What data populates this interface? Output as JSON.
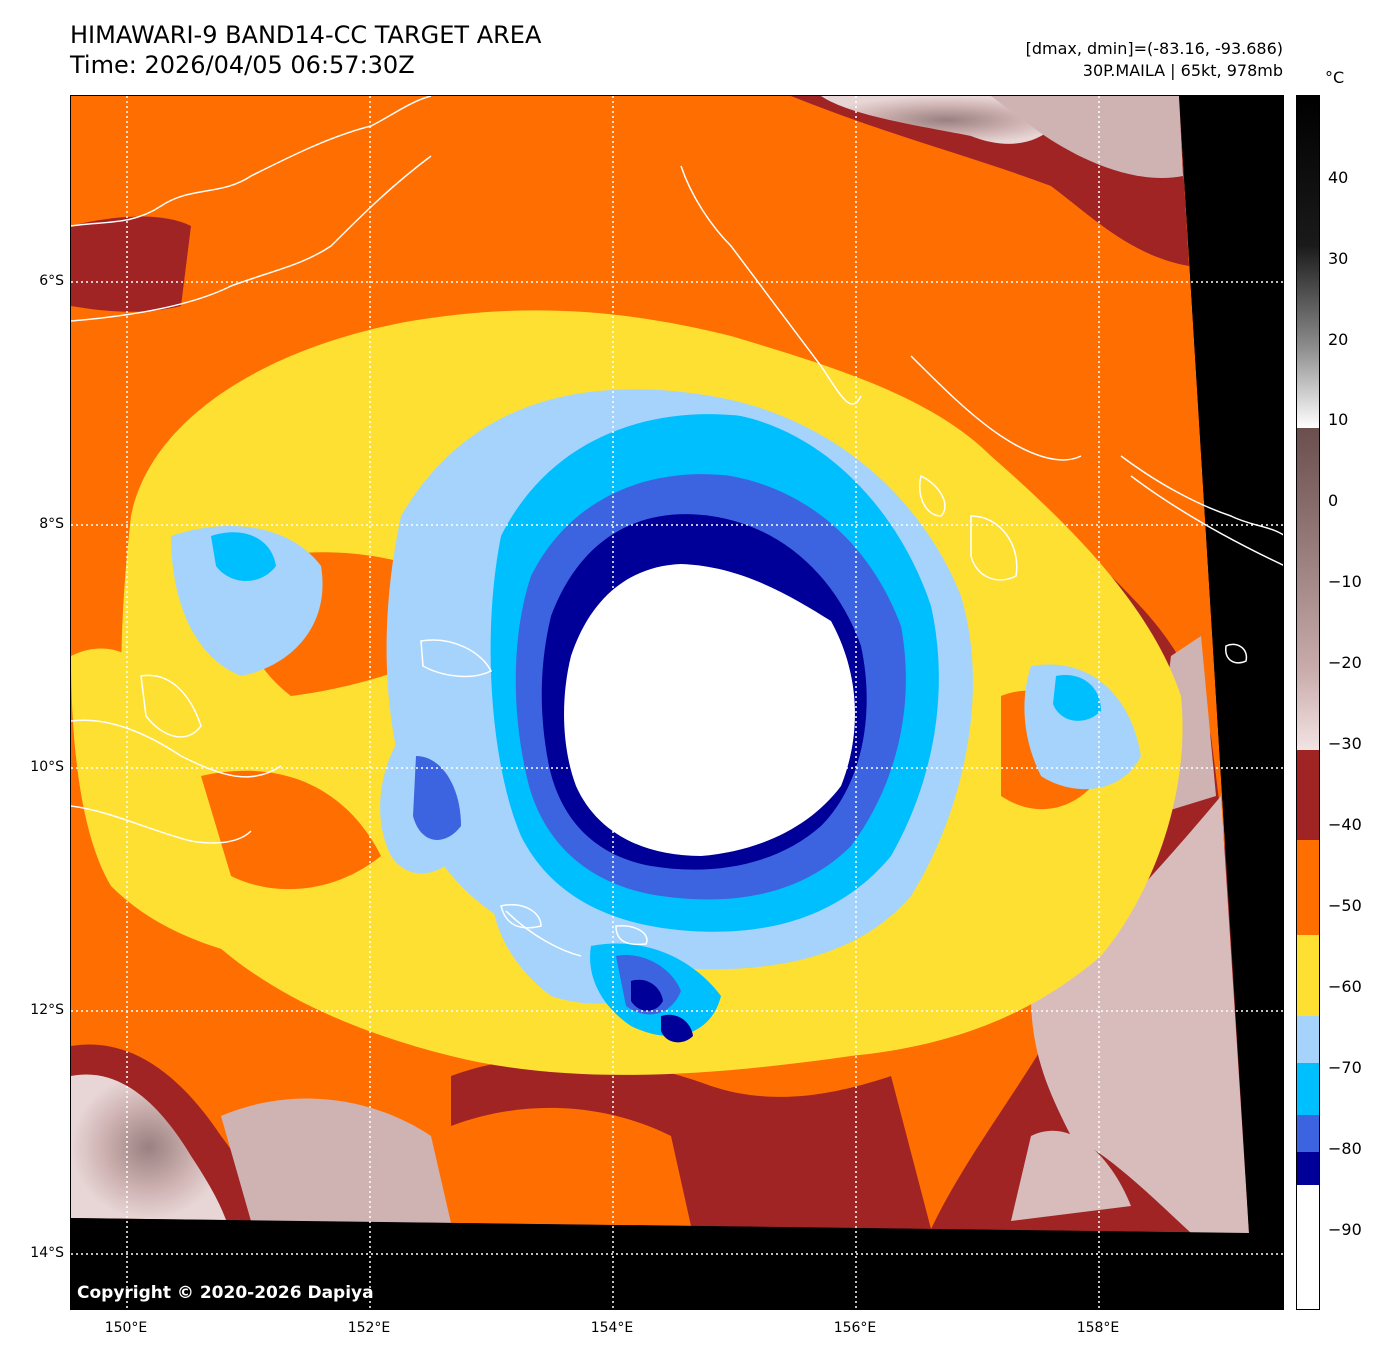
{
  "header": {
    "title_line1": "HIMAWARI-9 BAND14-CC TARGET AREA",
    "title_line2": "Time: 2026/04/05 06:57:30Z",
    "stats_line": "[dmax, dmin]=(-83.16, -93.686)",
    "storm_line": "30P.MAILA | 65kt, 978mb"
  },
  "map": {
    "copyright": "Copyright © 2020-2026 Dapiya",
    "lat_labels": [
      "6°S",
      "8°S",
      "10°S",
      "12°S",
      "14°S"
    ],
    "lon_labels": [
      "150°E",
      "152°E",
      "154°E",
      "156°E",
      "158°E"
    ]
  },
  "colorbar": {
    "unit": "°C",
    "ticks": [
      "40",
      "30",
      "20",
      "10",
      "0",
      "−10",
      "−20",
      "−30",
      "−40",
      "−50",
      "−60",
      "−70",
      "−80",
      "−90"
    ],
    "colors": {
      "white": "#ffffff",
      "navy": "#000099",
      "royal_blue": "#3d64e0",
      "sky_blue": "#00bfff",
      "light_blue": "#a6d3fb",
      "yellow": "#fde031",
      "orange": "#ff6e00",
      "dark_red": "#a02424",
      "gray_pink": "#d8bcbc"
    }
  }
}
